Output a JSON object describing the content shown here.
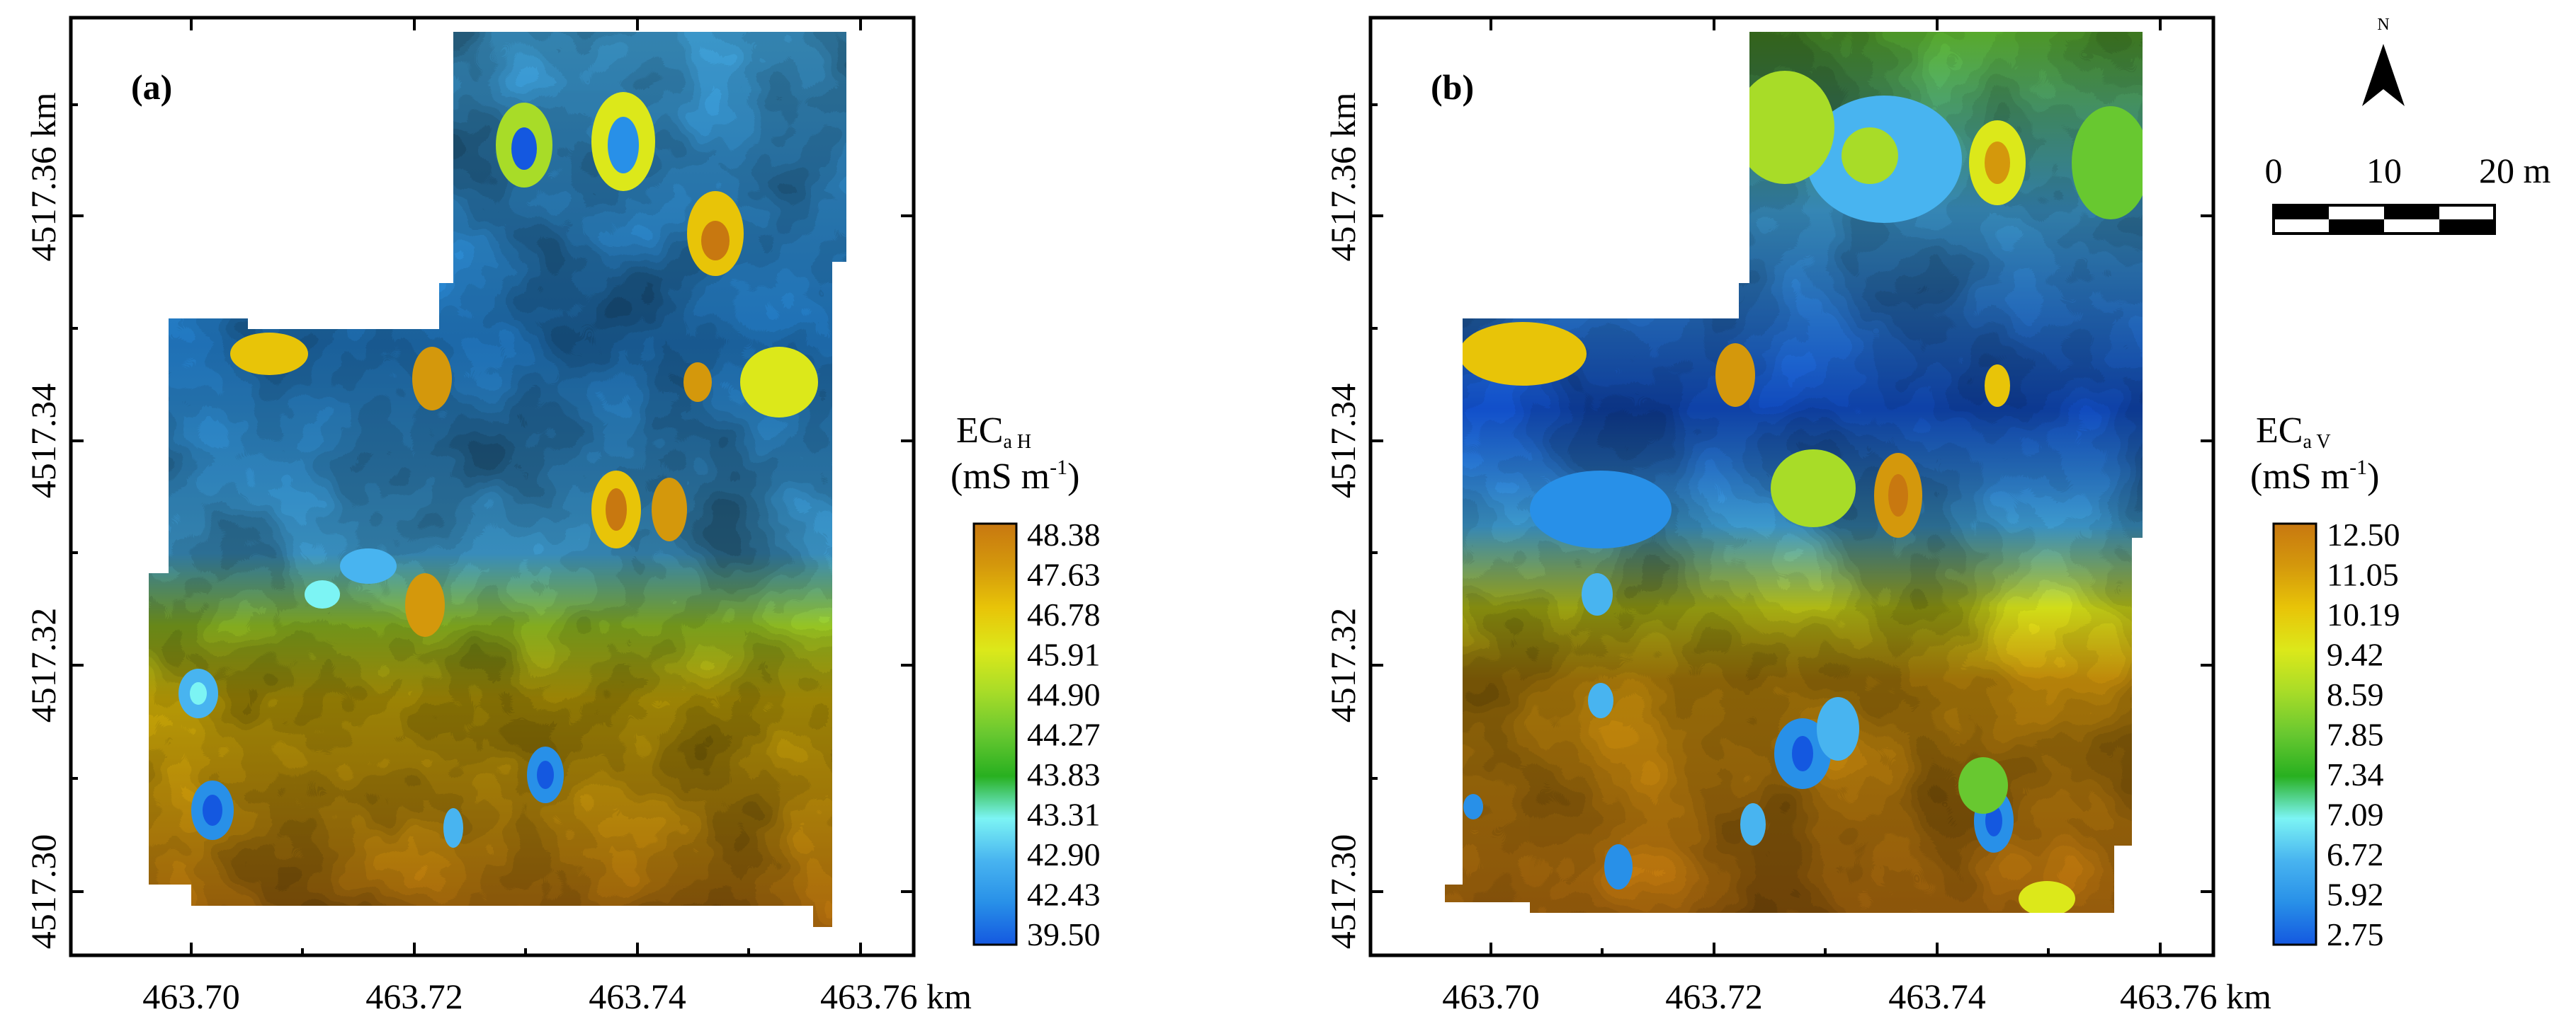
{
  "panels": [
    {
      "id": "a",
      "label": "(a)",
      "x_ticks": [
        "463.70",
        "463.72",
        "463.74",
        "463.76 km"
      ],
      "y_ticks": [
        "4517.30",
        "4517.32",
        "4517.34",
        "4517.36 km"
      ],
      "legend": {
        "title_main": "EC",
        "title_sub": "a H",
        "units_main": "(mS m",
        "units_sup": "-1",
        "units_close": ")",
        "values": [
          "48.38",
          "47.63",
          "46.78",
          "45.91",
          "44.90",
          "44.27",
          "43.83",
          "43.31",
          "42.90",
          "42.43",
          "39.50"
        ]
      }
    },
    {
      "id": "b",
      "label": "(b)",
      "x_ticks": [
        "463.70",
        "463.72",
        "463.74",
        "463.76 km"
      ],
      "y_ticks": [
        "4517.30",
        "4517.32",
        "4517.34",
        "4517.36 km"
      ],
      "legend": {
        "title_main": "EC",
        "title_sub": "a V",
        "units_main": "(mS m",
        "units_sup": "-1",
        "units_close": ")",
        "values": [
          "12.50",
          "11.05",
          "10.19",
          "9.42",
          "8.59",
          "7.85",
          "7.34",
          "7.09",
          "6.72",
          "5.92",
          "2.75"
        ]
      }
    }
  ],
  "north_arrow": {
    "label": "N"
  },
  "scale_bar": {
    "labels": [
      "0",
      "10",
      "20 m"
    ]
  },
  "colors": {
    "ramp": [
      "#c87810",
      "#d4980c",
      "#e8c408",
      "#dce81a",
      "#a8dc28",
      "#68c830",
      "#28b020",
      "#7cf4f4",
      "#48b4f0",
      "#2890e8",
      "#1458e0"
    ]
  }
}
